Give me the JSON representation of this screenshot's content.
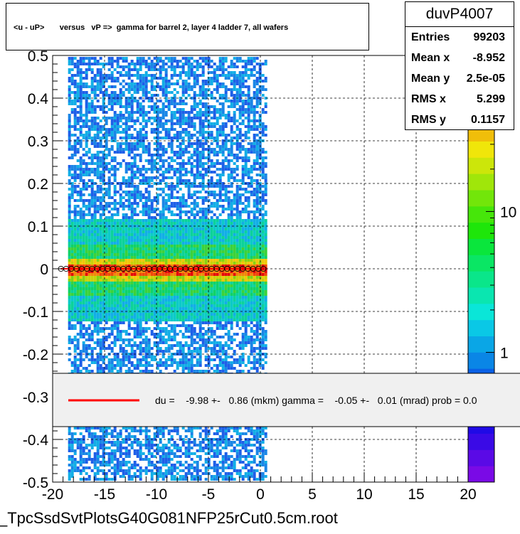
{
  "title": "<u - uP>       versus   vP =>  gamma for barrel 2, layer 4 ladder 7, all wafers",
  "stats": {
    "name": "duvP4007",
    "rows": [
      {
        "label": "Entries",
        "value": "99203"
      },
      {
        "label": "Mean x",
        "value": "-8.952"
      },
      {
        "label": "Mean y",
        "value": "2.5e-05"
      },
      {
        "label": "RMS x",
        "value": "5.299"
      },
      {
        "label": "RMS y",
        "value": "0.1157"
      }
    ]
  },
  "legend": {
    "text": "du =    -9.98 +-   0.86 (mkm) gamma =    -0.05 +-   0.01 (mrad) prob = 0.0",
    "line_color": "#ff0000"
  },
  "filename": "_TpcSsdSvtPlotsG40G081NFP25rCut0.5cm.root",
  "chart_data": {
    "type": "heatmap",
    "xlim": [
      -20,
      20
    ],
    "ylim": [
      -0.5,
      0.5
    ],
    "x_ticks": [
      "-20",
      "-15",
      "-10",
      "-5",
      "0",
      "5",
      "10",
      "15",
      "20"
    ],
    "y_ticks": [
      "-0.5",
      "-0.4",
      "-0.3",
      "-0.2",
      "-0.1",
      "0",
      "0.1",
      "0.2",
      "0.3",
      "0.4",
      "0.5"
    ],
    "grid": true,
    "log_z": true,
    "z_ticks": [
      "1",
      "10"
    ],
    "z_tick_values": [
      1,
      10
    ],
    "filled_x_range": [
      -19.2,
      0.4
    ],
    "profile_points": {
      "x": [
        -19.2,
        -18.7,
        -18.2,
        -17.7,
        -17.2,
        -16.7,
        -16.2,
        -15.7,
        -15.2,
        -14.7,
        -14.2,
        -13.7,
        -13.2,
        -12.7,
        -12.2,
        -11.7,
        -11.2,
        -10.7,
        -10.2,
        -9.7,
        -9.2,
        -8.7,
        -8.2,
        -7.7,
        -7.2,
        -6.7,
        -6.2,
        -5.7,
        -5.2,
        -4.7,
        -4.2,
        -3.7,
        -3.2,
        -2.7,
        -2.2,
        -1.7,
        -1.2,
        -0.7,
        -0.2,
        0.3
      ],
      "y": [
        0.0,
        0.0,
        0.0,
        0.0,
        0.0,
        0.0,
        0.0,
        0.0,
        0.0,
        0.0,
        0.0,
        0.0,
        0.0,
        0.0,
        0.0,
        0.0,
        0.0,
        0.0,
        0.0,
        0.0,
        0.0,
        0.0,
        0.0,
        0.0,
        0.0,
        0.0,
        0.0,
        0.0,
        0.0,
        0.0,
        0.0,
        0.0,
        0.0,
        0.0,
        0.0,
        0.0,
        0.0,
        0.0,
        0.0,
        0.0
      ]
    },
    "fit_line": {
      "slope": 0,
      "intercept": 0.0
    }
  }
}
